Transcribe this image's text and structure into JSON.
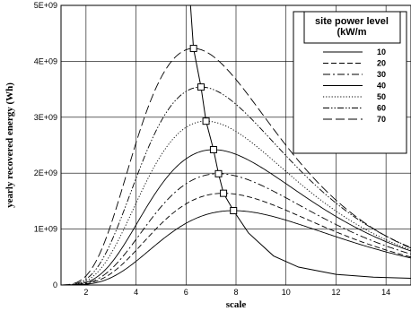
{
  "chart_data": {
    "type": "line",
    "xlabel": "scale",
    "ylabel": "yearly recovered energy (Wh)",
    "xlim": [
      1,
      15
    ],
    "ylim": [
      0,
      5000000000
    ],
    "xticks": [
      2,
      4,
      6,
      8,
      10,
      12,
      14
    ],
    "yticks": [
      0,
      1000000000,
      2000000000,
      3000000000,
      4000000000,
      5000000000
    ],
    "ytick_labels": [
      "0",
      "1E+09",
      "2E+09",
      "3E+09",
      "4E+09",
      "5E+09"
    ],
    "grid": true,
    "legend": {
      "title": "site power level (kW/m",
      "placement": "top-right"
    },
    "series": [
      {
        "name": "10",
        "dash": "none",
        "peak": [
          7.9,
          1330000000
        ]
      },
      {
        "name": "20",
        "dash": "6,3",
        "peak": [
          7.5,
          1640000000
        ]
      },
      {
        "name": "30",
        "dash": "8,3,2,3",
        "peak": [
          7.3,
          1990000000
        ]
      },
      {
        "name": "40",
        "dash": "none",
        "peak": [
          7.1,
          2420000000
        ]
      },
      {
        "name": "50",
        "dash": "1.2,2",
        "peak": [
          6.8,
          2930000000
        ]
      },
      {
        "name": "60",
        "dash": "7,2,1.5,2,1.5,2",
        "peak": [
          6.6,
          3540000000
        ]
      },
      {
        "name": "70",
        "dash": "10,4",
        "peak": [
          6.3,
          4230000000
        ]
      }
    ],
    "optimum_curve": {
      "marker": "square",
      "points": [
        [
          6.18,
          5000000000
        ],
        [
          6.3,
          4230000000
        ],
        [
          6.6,
          3540000000
        ],
        [
          6.8,
          2930000000
        ],
        [
          7.1,
          2420000000
        ],
        [
          7.3,
          1990000000
        ],
        [
          7.5,
          1640000000
        ],
        [
          7.9,
          1330000000
        ],
        [
          8.5,
          930000000
        ],
        [
          9.5,
          520000000
        ],
        [
          10.5,
          320000000
        ],
        [
          12,
          190000000
        ],
        [
          13.5,
          140000000
        ],
        [
          15,
          120000000
        ]
      ]
    }
  }
}
